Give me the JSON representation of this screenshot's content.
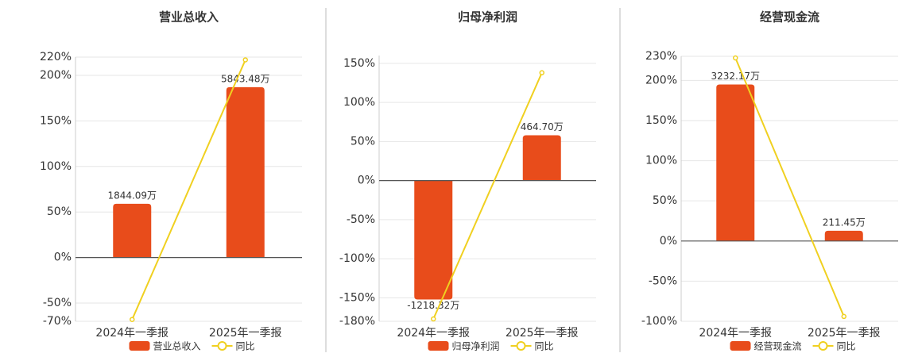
{
  "chart_data": [
    {
      "type": "bar",
      "title": "营业总收入",
      "categories": [
        "2024年一季报",
        "2025年一季报"
      ],
      "series": [
        {
          "name": "营业总收入",
          "type": "bar",
          "color": "#e84c1b",
          "axis": "y2",
          "values": [
            1844.09,
            5843.48
          ],
          "value_labels": [
            "1844.09万",
            "5843.48万"
          ]
        },
        {
          "name": "同比",
          "type": "line",
          "color": "#f0d020",
          "values": [
            -68,
            217
          ]
        }
      ],
      "ylim": [
        -70,
        220
      ],
      "yticks": [
        {
          "value": -70,
          "label": "-70%"
        },
        {
          "value": -50,
          "label": "-50%"
        },
        {
          "value": 0,
          "label": "0%"
        },
        {
          "value": 50,
          "label": "50%"
        },
        {
          "value": 100,
          "label": "100%"
        },
        {
          "value": 150,
          "label": "150%"
        },
        {
          "value": 200,
          "label": "200%"
        },
        {
          "value": 220,
          "label": "220%"
        }
      ],
      "y2lim": [
        -2188,
        6875
      ],
      "grid": true
    },
    {
      "type": "bar",
      "title": "归母净利润",
      "categories": [
        "2024年一季报",
        "2025年一季报"
      ],
      "series": [
        {
          "name": "归母净利润",
          "type": "bar",
          "color": "#e84c1b",
          "axis": "y2",
          "values": [
            -1218.32,
            464.7
          ],
          "value_labels": [
            "-1218.32万",
            "464.70万"
          ]
        },
        {
          "name": "同比",
          "type": "line",
          "color": "#f0d020",
          "values": [
            -177,
            138
          ]
        }
      ],
      "ylim": [
        -180,
        160
      ],
      "yticks": [
        {
          "value": -180,
          "label": "-180%"
        },
        {
          "value": -150,
          "label": "-150%"
        },
        {
          "value": -100,
          "label": "-100%"
        },
        {
          "value": -50,
          "label": "-50%"
        },
        {
          "value": 0,
          "label": "0%"
        },
        {
          "value": 50,
          "label": "50%"
        },
        {
          "value": 100,
          "label": "100%"
        },
        {
          "value": 150,
          "label": "150%"
        }
      ],
      "y2lim": [
        -1442,
        1282
      ],
      "grid": true
    },
    {
      "type": "bar",
      "title": "经营现金流",
      "categories": [
        "2024年一季报",
        "2025年一季报"
      ],
      "series": [
        {
          "name": "经营现金流",
          "type": "bar",
          "color": "#e84c1b",
          "axis": "y2",
          "values": [
            3232.17,
            211.45
          ],
          "value_labels": [
            "3232.17万",
            "211.45万"
          ]
        },
        {
          "name": "同比",
          "type": "line",
          "color": "#f0d020",
          "values": [
            228,
            -94
          ]
        }
      ],
      "ylim": [
        -100,
        230
      ],
      "yticks": [
        {
          "value": -100,
          "label": "-100%"
        },
        {
          "value": -50,
          "label": "-50%"
        },
        {
          "value": 0,
          "label": "0%"
        },
        {
          "value": 50,
          "label": "50%"
        },
        {
          "value": 100,
          "label": "100%"
        },
        {
          "value": 150,
          "label": "150%"
        },
        {
          "value": 200,
          "label": "200%"
        },
        {
          "value": 230,
          "label": "230%"
        }
      ],
      "y2lim": [
        -1658,
        3814
      ],
      "grid": true
    }
  ]
}
